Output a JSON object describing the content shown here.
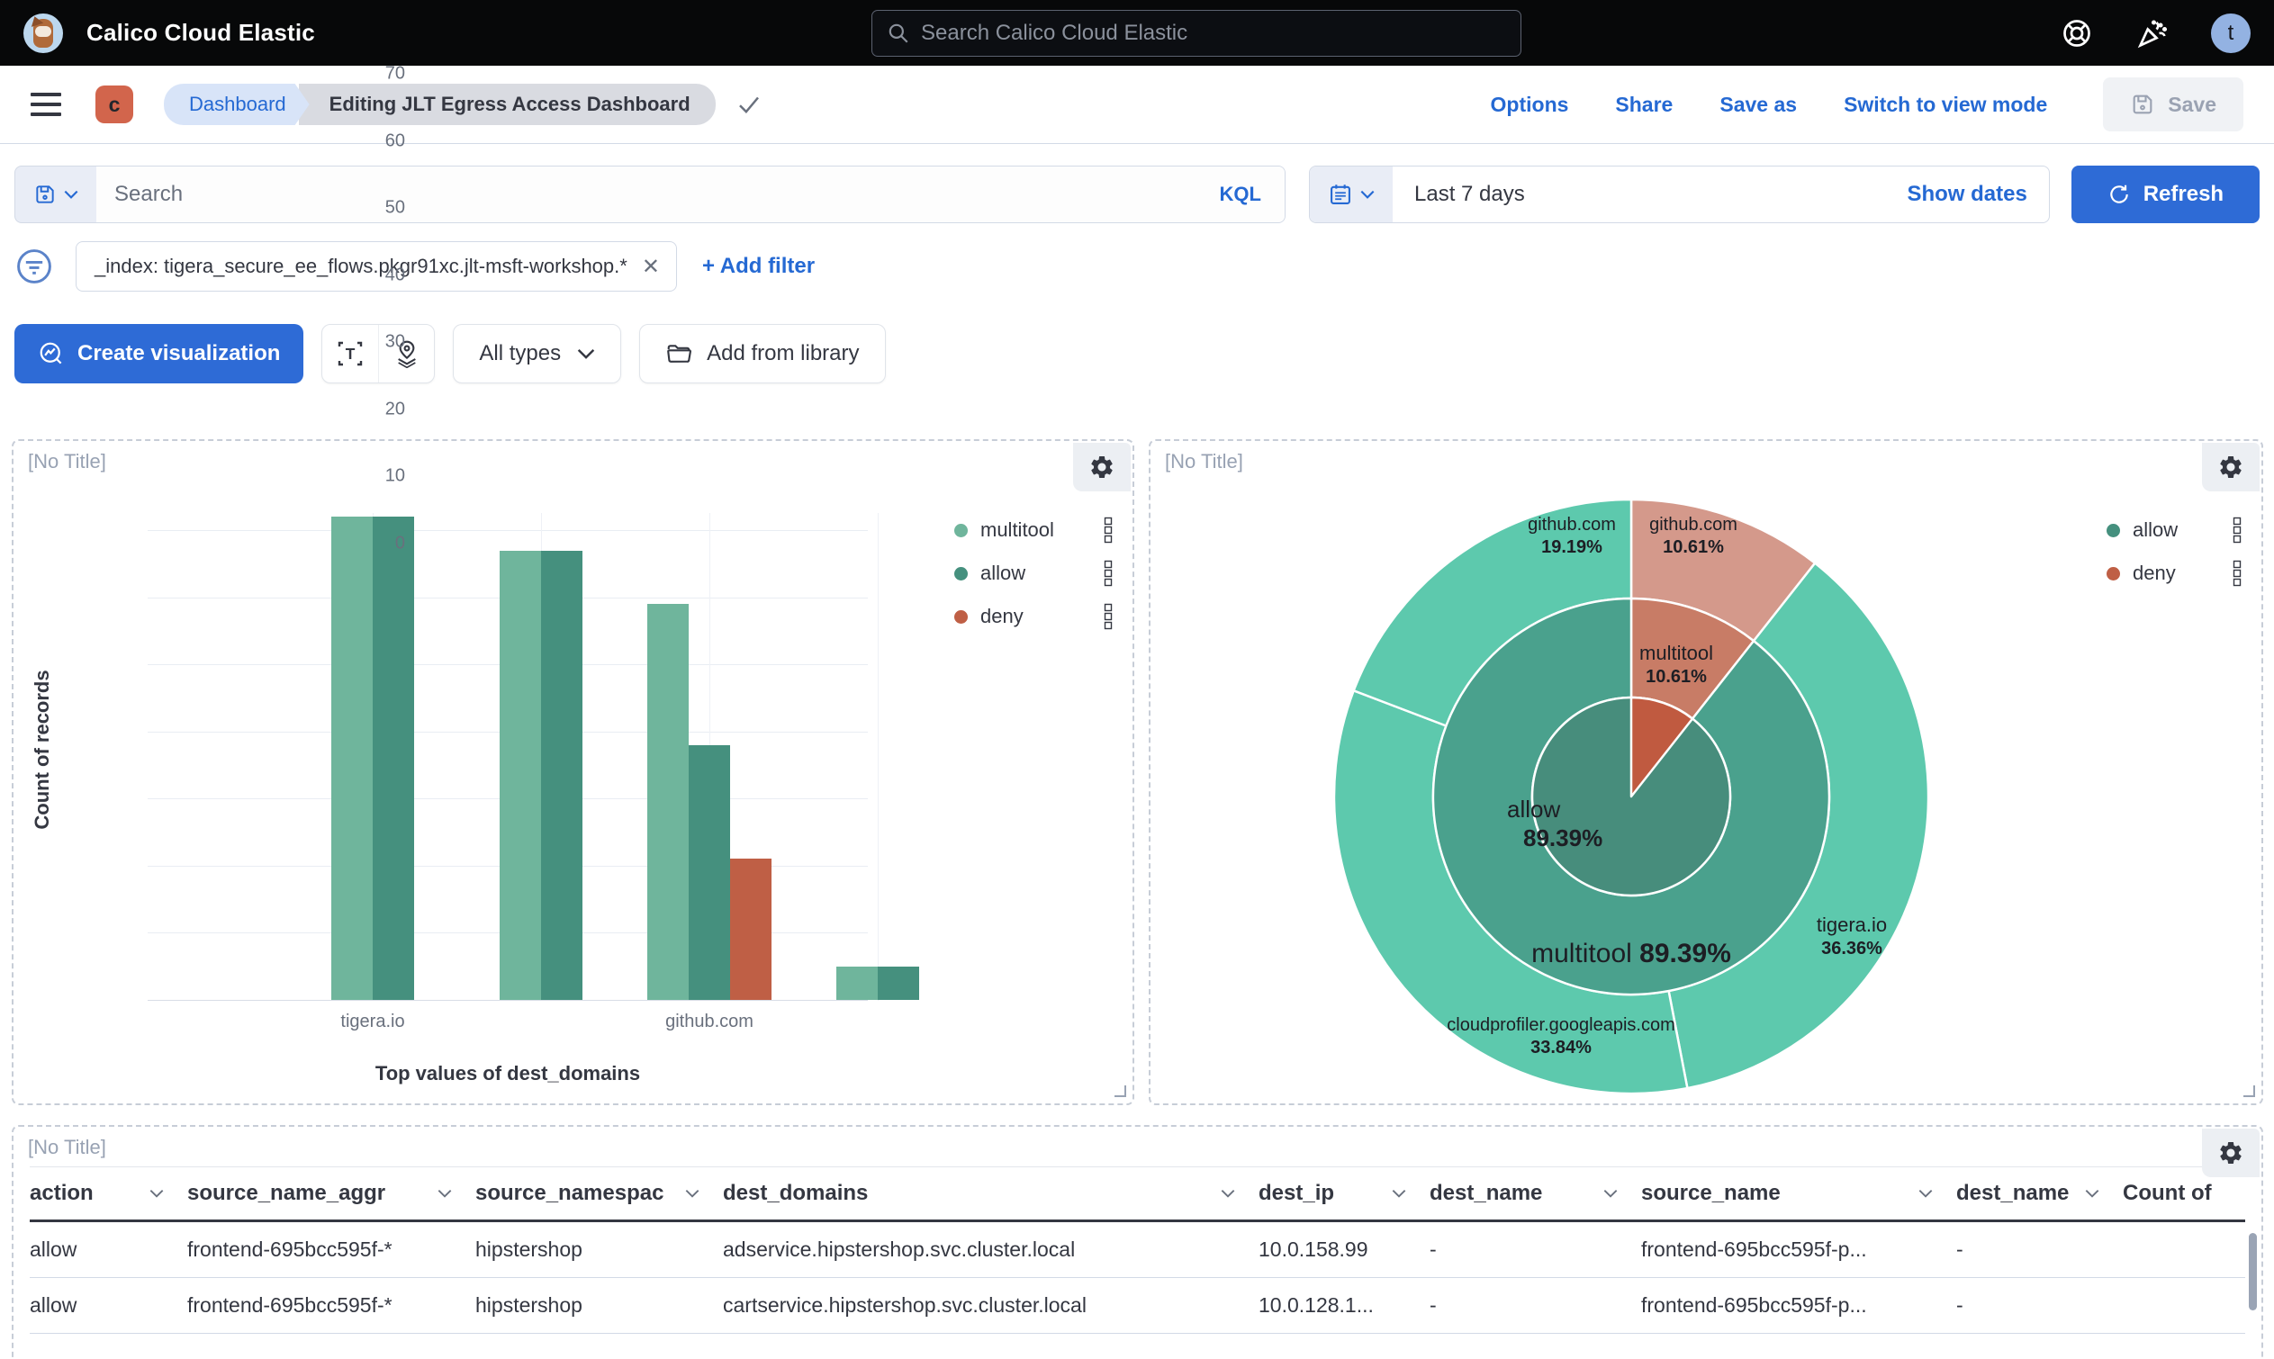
{
  "topbar": {
    "title": "Calico Cloud Elastic",
    "search_placeholder": "Search Calico Cloud Elastic",
    "avatar_initial": "t"
  },
  "nav": {
    "space_badge": "c",
    "breadcrumb_root": "Dashboard",
    "breadcrumb_current": "Editing JLT Egress Access Dashboard",
    "actions": {
      "options": "Options",
      "share": "Share",
      "save_as": "Save as",
      "switch_view": "Switch to view mode",
      "save": "Save"
    }
  },
  "querybar": {
    "search_placeholder": "Search",
    "kql_label": "KQL",
    "date_value": "Last 7 days",
    "show_dates_label": "Show dates",
    "refresh_label": "Refresh"
  },
  "filterbar": {
    "filter_pill": "_index: tigera_secure_ee_flows.pkgr91xc.jlt-msft-workshop.*",
    "remove_filter": "✕",
    "add_filter_label": "+ Add filter"
  },
  "toolbar": {
    "create_viz_label": "Create visualization",
    "all_types_label": "All types",
    "add_library_label": "Add from library"
  },
  "panel_title": "[No Title]",
  "colors": {
    "accent_blue": "#2e6bd6",
    "link_blue": "#2569d3",
    "multitool": "#6fb59c",
    "allow": "#45907e",
    "deny": "#bf5f45",
    "sunburst_outer_teal": "#5dc9ad",
    "sunburst_mid_teal": "#4aa18d",
    "sunburst_inner_teal": "#478d7c",
    "sunburst_inner_red": "#c05a40",
    "sunburst_mid_salmon": "#c87c66",
    "sunburst_outer_pink": "#d4998b"
  },
  "chart_data": [
    {
      "type": "bar",
      "title": "[No Title]",
      "xlabel": "Top values of dest_domains",
      "ylabel": "Count of records",
      "ylim": [
        0,
        70
      ],
      "yticks": [
        "0",
        "10",
        "20",
        "30",
        "40",
        "50",
        "60",
        "70"
      ],
      "grid": true,
      "legend_position": "right",
      "categories": [
        "tigera.io",
        "",
        "github.com",
        ""
      ],
      "series": [
        {
          "name": "multitool",
          "color": "#6fb59c",
          "values": [
            72,
            67,
            59,
            5
          ]
        },
        {
          "name": "allow",
          "color": "#45907e",
          "values": [
            72,
            67,
            38,
            5
          ]
        },
        {
          "name": "deny",
          "color": "#bf5f45",
          "values": [
            null,
            null,
            21,
            null
          ]
        }
      ]
    },
    {
      "type": "pie",
      "subtype": "sunburst",
      "title": "[No Title]",
      "legend": [
        {
          "label": "allow",
          "color": "#45907e"
        },
        {
          "label": "deny",
          "color": "#bf5f45"
        }
      ],
      "rings": [
        {
          "level": "action",
          "slices": [
            {
              "label": "allow",
              "pct": 89.39
            },
            {
              "label": "deny",
              "pct": 10.61
            }
          ]
        },
        {
          "level": "source",
          "slices": [
            {
              "label": "multitool",
              "pct": 89.39,
              "parent": "allow"
            },
            {
              "label": "multitool",
              "pct": 10.61,
              "parent": "deny"
            }
          ]
        },
        {
          "level": "dest_domain",
          "slices": [
            {
              "label": "github.com",
              "pct": 10.61,
              "parent": "deny"
            },
            {
              "label": "tigera.io",
              "pct": 36.36,
              "parent": "allow"
            },
            {
              "label": "cloudprofiler.googleapis.com",
              "pct": 33.84,
              "parent": "allow"
            },
            {
              "label": "github.com",
              "pct": 19.19,
              "parent": "allow"
            }
          ]
        }
      ],
      "labels": {
        "outer_github_allow": {
          "name": "github.com",
          "pct": "19.19%"
        },
        "outer_github_deny": {
          "name": "github.com",
          "pct": "10.61%"
        },
        "mid_deny": {
          "name": "multitool",
          "pct": "10.61%"
        },
        "center": {
          "name": "allow",
          "pct": "89.39%"
        },
        "mid_allow": {
          "name": "multitool",
          "pct": "89.39%"
        },
        "outer_tigera": {
          "name": "tigera.io",
          "pct": "36.36%"
        },
        "outer_cloud": {
          "name": "cloudprofiler.googleapis.com",
          "pct": "33.84%"
        }
      }
    }
  ],
  "table": {
    "headers": [
      "action",
      "source_name_aggr",
      "source_namespac",
      "dest_domains",
      "dest_ip",
      "dest_name",
      "source_name",
      "dest_name",
      "Count of"
    ],
    "rows": [
      [
        "allow",
        "frontend-695bcc595f-*",
        "hipstershop",
        "adservice.hipstershop.svc.cluster.local",
        "10.0.158.99",
        "-",
        "frontend-695bcc595f-p...",
        "-",
        ""
      ],
      [
        "allow",
        "frontend-695bcc595f-*",
        "hipstershop",
        "cartservice.hipstershop.svc.cluster.local",
        "10.0.128.1...",
        "-",
        "frontend-695bcc595f-p...",
        "-",
        ""
      ]
    ]
  }
}
